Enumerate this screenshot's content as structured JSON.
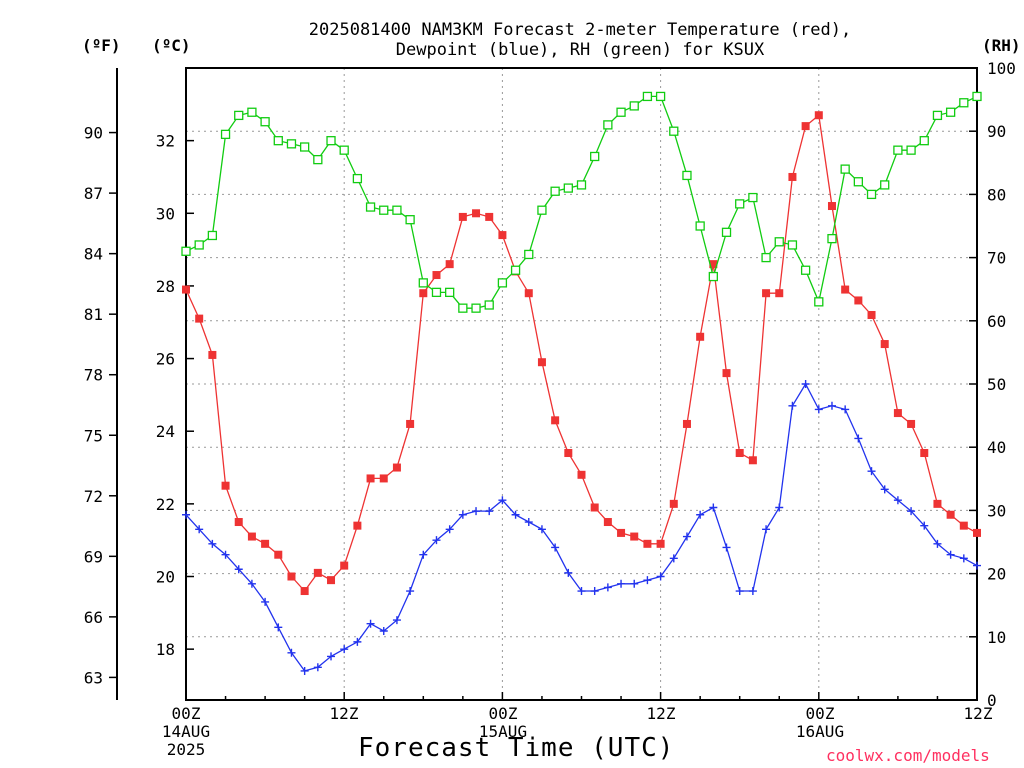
{
  "title_line1": "2025081400 NAM3KM Forecast 2-meter Temperature (red),",
  "title_line2": "Dewpoint (blue), RH (green) for KSUX",
  "left_unit_f": "(ºF)",
  "left_unit_c": "(ºC)",
  "right_unit": "(RH)",
  "xaxis_title": "Forecast Time (UTC)",
  "credit": "coolwx.com/models",
  "x_labels": [
    {
      "lines": [
        "00Z",
        "14AUG",
        "2025"
      ]
    },
    {
      "lines": [
        "12Z"
      ]
    },
    {
      "lines": [
        "00Z",
        "15AUG"
      ]
    },
    {
      "lines": [
        "12Z"
      ]
    },
    {
      "lines": [
        "00Z",
        "16AUG"
      ]
    },
    {
      "lines": [
        "12Z"
      ]
    }
  ],
  "colors": {
    "temperature": "#ee3333",
    "dewpoint": "#2233ee",
    "rh": "#11cc11",
    "grid": "#999999",
    "credit": "#ff3060"
  },
  "chart_data": {
    "type": "line",
    "x_unit": "forecast hour from 2025-08-14 00Z",
    "xlim": [
      0,
      60
    ],
    "ylim_celsius": [
      16.6,
      34.0
    ],
    "ylim_rh": [
      0,
      100
    ],
    "fahrenheit_ticks": [
      63,
      66,
      69,
      72,
      75,
      78,
      81,
      84,
      87,
      90
    ],
    "celsius_ticks": [
      18,
      20,
      22,
      24,
      26,
      28,
      30,
      32
    ],
    "rh_ticks": [
      0,
      10,
      20,
      30,
      40,
      50,
      60,
      70,
      80,
      90,
      100
    ],
    "grid": true,
    "series": [
      {
        "name": "Temperature",
        "axis": "celsius",
        "color": "#ee3333",
        "marker": "filled-square",
        "x": [
          0,
          1,
          2,
          3,
          4,
          5,
          6,
          7,
          8,
          9,
          10,
          11,
          12,
          13,
          14,
          15,
          16,
          17,
          18,
          19,
          20,
          21,
          22,
          23,
          24,
          25,
          26,
          27,
          28,
          29,
          30,
          31,
          32,
          33,
          34,
          35,
          36,
          37,
          38,
          39,
          40,
          41,
          42,
          43,
          44,
          45,
          46,
          47,
          48,
          49,
          50,
          51,
          52,
          53,
          54,
          55,
          56,
          57,
          58,
          59,
          60
        ],
        "y": [
          27.9,
          27.1,
          26.1,
          22.5,
          21.5,
          21.1,
          20.9,
          20.6,
          20.0,
          19.6,
          20.1,
          19.9,
          20.3,
          21.4,
          22.7,
          22.7,
          23.0,
          24.2,
          27.8,
          28.3,
          28.6,
          29.9,
          30.0,
          29.9,
          29.4,
          28.4,
          27.8,
          25.9,
          24.3,
          23.4,
          22.8,
          21.9,
          21.5,
          21.2,
          21.1,
          20.9,
          20.9,
          22.0,
          24.2,
          26.6,
          28.6,
          25.6,
          23.4,
          23.2,
          27.8,
          27.8,
          31.0,
          32.4,
          32.7,
          30.2,
          27.9,
          27.6,
          27.2,
          26.4,
          24.5,
          24.2,
          23.4,
          22.0,
          21.7,
          21.4,
          21.2
        ]
      },
      {
        "name": "Dewpoint",
        "axis": "celsius",
        "color": "#2233ee",
        "marker": "plus",
        "x": [
          0,
          1,
          2,
          3,
          4,
          5,
          6,
          7,
          8,
          9,
          10,
          11,
          12,
          13,
          14,
          15,
          16,
          17,
          18,
          19,
          20,
          21,
          22,
          23,
          24,
          25,
          26,
          27,
          28,
          29,
          30,
          31,
          32,
          33,
          34,
          35,
          36,
          37,
          38,
          39,
          40,
          41,
          42,
          43,
          44,
          45,
          46,
          47,
          48,
          49,
          50,
          51,
          52,
          53,
          54,
          55,
          56,
          57,
          58,
          59,
          60
        ],
        "y": [
          21.7,
          21.3,
          20.9,
          20.6,
          20.2,
          19.8,
          19.3,
          18.6,
          17.9,
          17.4,
          17.5,
          17.8,
          18.0,
          18.2,
          18.7,
          18.5,
          18.8,
          19.6,
          20.6,
          21.0,
          21.3,
          21.7,
          21.8,
          21.8,
          22.1,
          21.7,
          21.5,
          21.3,
          20.8,
          20.1,
          19.6,
          19.6,
          19.7,
          19.8,
          19.8,
          19.9,
          20.0,
          20.5,
          21.1,
          21.7,
          21.9,
          20.8,
          19.6,
          19.6,
          21.3,
          21.9,
          24.7,
          25.3,
          24.6,
          24.7,
          24.6,
          23.8,
          22.9,
          22.4,
          22.1,
          21.8,
          21.4,
          20.9,
          20.6,
          20.5,
          20.3
        ]
      },
      {
        "name": "RH",
        "axis": "rh",
        "color": "#11cc11",
        "marker": "open-square",
        "x": [
          0,
          1,
          2,
          3,
          4,
          5,
          6,
          7,
          8,
          9,
          10,
          11,
          12,
          13,
          14,
          15,
          16,
          17,
          18,
          19,
          20,
          21,
          22,
          23,
          24,
          25,
          26,
          27,
          28,
          29,
          30,
          31,
          32,
          33,
          34,
          35,
          36,
          37,
          38,
          39,
          40,
          41,
          42,
          43,
          44,
          45,
          46,
          47,
          48,
          49,
          50,
          51,
          52,
          53,
          54,
          55,
          56,
          57,
          58,
          59,
          60
        ],
        "y": [
          71,
          72,
          73.5,
          89.5,
          92.5,
          93,
          91.5,
          88.5,
          88,
          87.5,
          85.5,
          88.5,
          87,
          82.5,
          78,
          77.5,
          77.5,
          76,
          66,
          64.5,
          64.5,
          62,
          62,
          62.5,
          66,
          68,
          70.5,
          77.5,
          80.5,
          81,
          81.5,
          86,
          91,
          93,
          94,
          95.5,
          95.5,
          90,
          83,
          75,
          67,
          74,
          78.5,
          79.5,
          70,
          72.5,
          72,
          68,
          63,
          73,
          84,
          82,
          80,
          81.5,
          87,
          87,
          88.5,
          92.5,
          93,
          94.5,
          95.5
        ]
      }
    ]
  }
}
